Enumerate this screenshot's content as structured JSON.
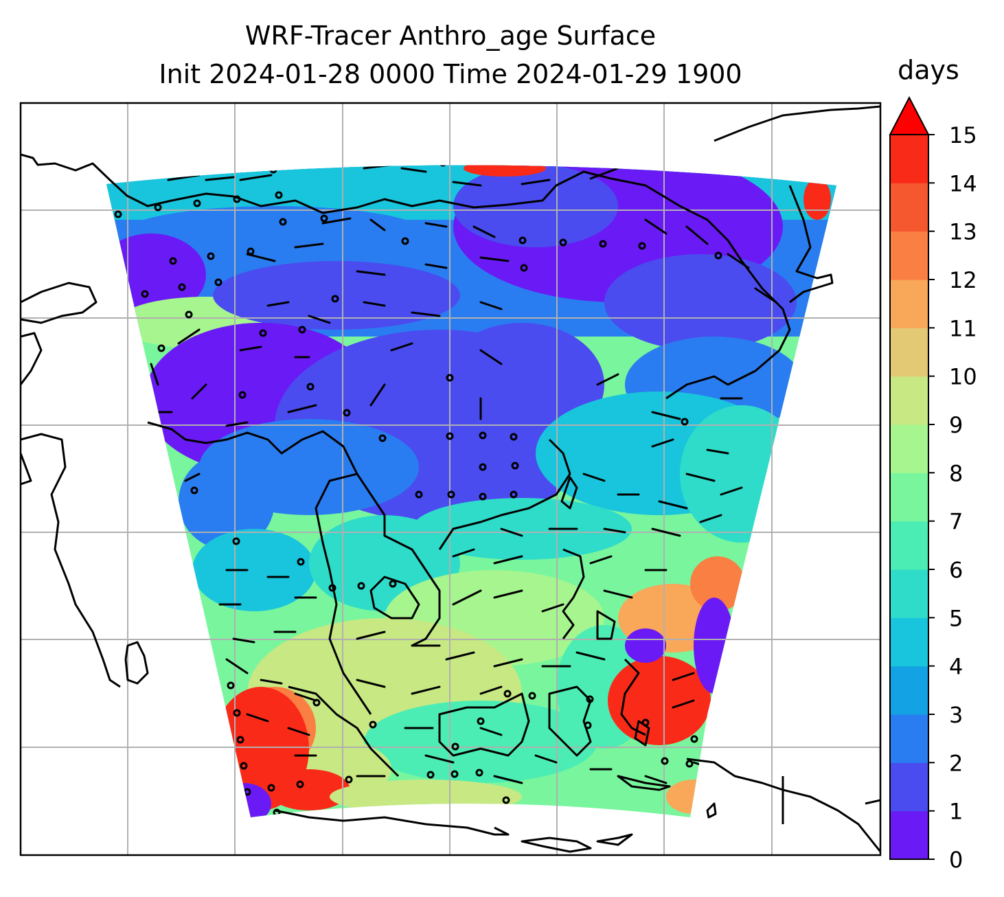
{
  "title": {
    "line1": "WRF-Tracer Anthro_age Surface",
    "line2": "Init 2024-01-28 0000 Time 2024-01-29 1900"
  },
  "colorbar": {
    "label": "days",
    "ticks": [
      "0",
      "1",
      "2",
      "3",
      "4",
      "5",
      "6",
      "7",
      "8",
      "9",
      "10",
      "11",
      "12",
      "13",
      "14",
      "15"
    ],
    "colors": [
      "#6a1bf5",
      "#4a4cf0",
      "#2a7df0",
      "#13a3e4",
      "#19c5dc",
      "#2fdcc9",
      "#4cedb4",
      "#79f69d",
      "#a6f58f",
      "#c7e883",
      "#e3c974",
      "#f9a759",
      "#f97f42",
      "#f5582e",
      "#fa2a19"
    ],
    "over_color": "#ff0000",
    "extend": "max"
  },
  "map": {
    "projection": "lambert",
    "gridlines": true,
    "coastlines": true,
    "wind_barbs": true,
    "field": "Anthro_age",
    "units": "days",
    "range": [
      0,
      15
    ]
  }
}
